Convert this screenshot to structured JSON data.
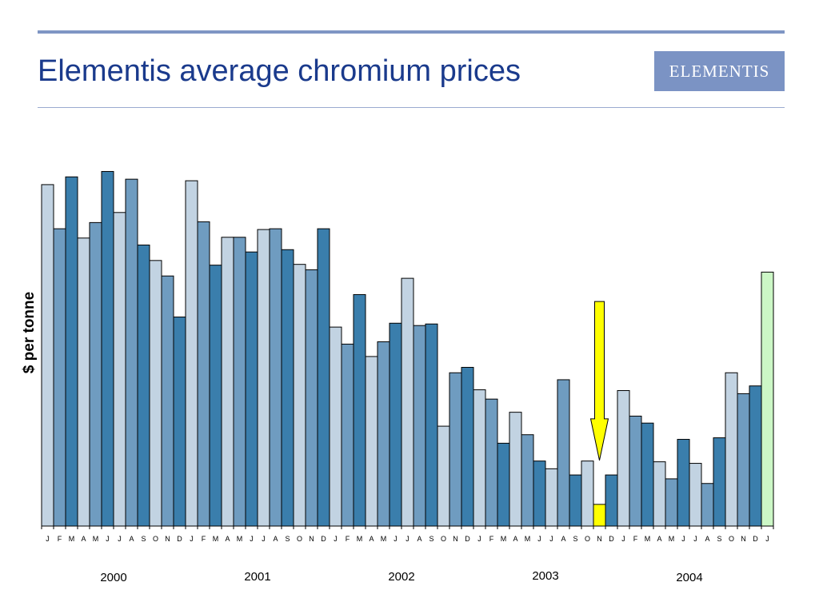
{
  "slide": {
    "title": "Elementis average chromium prices",
    "logo_text": "ELEMENTIS"
  },
  "colors": {
    "title": "#1a3a8c",
    "rule": "#7f96c4",
    "logo_bg": "#7b93c4",
    "bar_light": "#c2d3e2",
    "bar_medium": "#6f9cc0",
    "bar_dark": "#3a7eac",
    "highlight_bar": "#ffff00",
    "latest_bar": "#ccf7c6",
    "arrow": "#ffff00"
  },
  "chart_data": {
    "type": "bar",
    "title": "",
    "xlabel": "",
    "ylabel": "$ per tonne",
    "ylim": [
      0,
      475
    ],
    "y_ticks_shown": false,
    "grid": false,
    "categories": [
      "J",
      "F",
      "M",
      "A",
      "M",
      "J",
      "J",
      "A",
      "S",
      "O",
      "N",
      "D",
      "J",
      "F",
      "M",
      "A",
      "M",
      "J",
      "J",
      "A",
      "S",
      "O",
      "N",
      "D",
      "J",
      "F",
      "M",
      "A",
      "M",
      "J",
      "J",
      "A",
      "S",
      "O",
      "N",
      "D",
      "J",
      "F",
      "M",
      "A",
      "M",
      "J",
      "J",
      "A",
      "S",
      "O",
      "N",
      "D",
      "J",
      "F",
      "M",
      "A",
      "M",
      "J",
      "J",
      "A",
      "S",
      "O",
      "N",
      "D",
      "J"
    ],
    "values": [
      441,
      384,
      451,
      372,
      392,
      458,
      405,
      448,
      363,
      343,
      323,
      270,
      446,
      393,
      337,
      373,
      373,
      354,
      383,
      384,
      357,
      338,
      331,
      384,
      257,
      235,
      299,
      219,
      238,
      262,
      320,
      259,
      261,
      129,
      198,
      205,
      176,
      164,
      107,
      147,
      118,
      84,
      74,
      189,
      66,
      84,
      28,
      66,
      175,
      142,
      133,
      83,
      61,
      112,
      81,
      55,
      114,
      198,
      171,
      181,
      328
    ],
    "shades": [
      "light",
      "medium",
      "dark",
      "light",
      "medium",
      "dark",
      "light",
      "medium",
      "dark",
      "light",
      "medium",
      "dark",
      "light",
      "medium",
      "dark",
      "light",
      "medium",
      "dark",
      "light",
      "medium",
      "dark",
      "light",
      "medium",
      "dark",
      "light",
      "medium",
      "dark",
      "light",
      "medium",
      "dark",
      "light",
      "medium",
      "dark",
      "light",
      "medium",
      "dark",
      "light",
      "medium",
      "dark",
      "light",
      "medium",
      "dark",
      "light",
      "medium",
      "dark",
      "light",
      "highlight",
      "dark",
      "light",
      "medium",
      "dark",
      "light",
      "medium",
      "dark",
      "light",
      "medium",
      "dark",
      "light",
      "medium",
      "dark",
      "latest"
    ],
    "years": [
      {
        "label": "2000",
        "start": 0,
        "end": 11
      },
      {
        "label": "2001",
        "start": 12,
        "end": 23
      },
      {
        "label": "2002",
        "start": 24,
        "end": 35
      },
      {
        "label": "2003",
        "start": 36,
        "end": 47
      },
      {
        "label": "2004",
        "start": 48,
        "end": 59
      }
    ],
    "annotations": [
      {
        "type": "arrow",
        "points_to_index": 46,
        "from_value": 290
      }
    ]
  }
}
